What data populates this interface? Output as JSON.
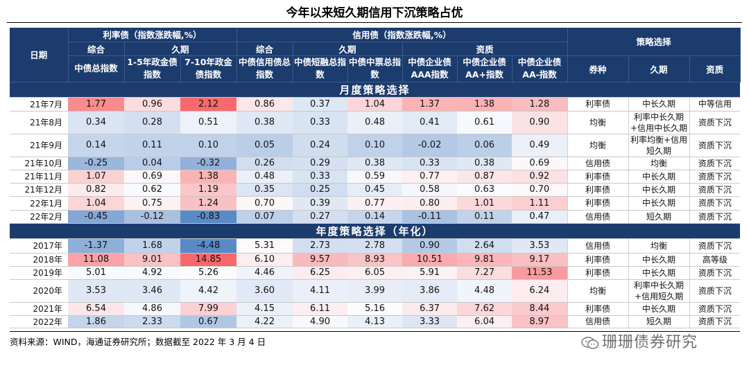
{
  "title": "今年以来短久期信用下沉策略占优",
  "header": {
    "date": "日期",
    "rate_group": "利率债（指数涨跌幅,%）",
    "credit_group": "信用债（指数涨跌幅,%）",
    "strategy_group": "策略选择",
    "rate_composite": "综合",
    "rate_duration": "久期",
    "credit_composite": "综合",
    "credit_duration": "久期",
    "credit_quality": "资质",
    "columns": [
      "中债总指数",
      "1-5年政金债指数",
      "7-10年政金债指数",
      "中债信用债总指数",
      "中债短融总指数",
      "中债中票总指数",
      "中债企业债AAA指数",
      "中债企业债AA+指数",
      "中债企业债AA-指数"
    ],
    "strategy_columns": [
      "券种",
      "久期",
      "资质"
    ]
  },
  "sections": {
    "monthly": "月度策略选择",
    "yearly": "年度策略选择（年化）"
  },
  "monthly_rows": [
    {
      "date": "21年7月",
      "values": [
        "1.77",
        "0.96",
        "2.12",
        "0.86",
        "0.37",
        "1.04",
        "1.37",
        "1.38",
        "1.28"
      ],
      "type": "利率债",
      "duration": "中长久期",
      "quality": "中等信用"
    },
    {
      "date": "21年8月",
      "values": [
        "0.34",
        "0.28",
        "0.51",
        "0.38",
        "0.33",
        "0.48",
        "0.41",
        "0.61",
        "0.90"
      ],
      "type": "均衡",
      "duration": "利率中长久期+信用中长久期",
      "quality": "资质下沉"
    },
    {
      "date": "21年9月",
      "values": [
        "0.14",
        "0.11",
        "0.10",
        "0.05",
        "0.24",
        "0.10",
        "-0.02",
        "0.06",
        "0.49"
      ],
      "type": "均衡",
      "duration": "利率均衡+信用短久期",
      "quality": "资质下沉"
    },
    {
      "date": "21年10月",
      "values": [
        "-0.25",
        "0.04",
        "-0.32",
        "0.26",
        "0.29",
        "0.38",
        "0.33",
        "0.38",
        "0.69"
      ],
      "type": "信用债",
      "duration": "均衡",
      "quality": "资质下沉"
    },
    {
      "date": "21年11月",
      "values": [
        "1.07",
        "0.69",
        "1.38",
        "0.48",
        "0.33",
        "0.59",
        "0.77",
        "0.87",
        "0.92"
      ],
      "type": "利率债",
      "duration": "中长久期",
      "quality": "资质下沉"
    },
    {
      "date": "21年12月",
      "values": [
        "0.82",
        "0.62",
        "1.19",
        "0.35",
        "0.25",
        "0.45",
        "0.58",
        "0.63",
        "0.70"
      ],
      "type": "利率债",
      "duration": "中长久期",
      "quality": "资质下沉"
    },
    {
      "date": "22年1月",
      "values": [
        "1.04",
        "0.75",
        "1.24",
        "0.70",
        "0.39",
        "0.77",
        "0.80",
        "1.01",
        "1.11"
      ],
      "type": "利率债",
      "duration": "中长久期",
      "quality": "资质下沉"
    },
    {
      "date": "22年2月",
      "values": [
        "-0.45",
        "-0.12",
        "-0.83",
        "0.07",
        "0.27",
        "0.14",
        "-0.11",
        "0.11",
        "0.47"
      ],
      "type": "信用债",
      "duration": "短久期",
      "quality": "资质下沉"
    }
  ],
  "yearly_rows": [
    {
      "date": "2017年",
      "values": [
        "-1.37",
        "1.68",
        "-4.48",
        "5.31",
        "2.73",
        "2.78",
        "0.90",
        "2.64",
        "3.53"
      ],
      "type": "信用债",
      "duration": "均衡",
      "quality": "资质下沉"
    },
    {
      "date": "2018年",
      "values": [
        "11.08",
        "9.01",
        "14.85",
        "6.10",
        "9.57",
        "8.93",
        "10.51",
        "9.81",
        "9.17"
      ],
      "type": "利率债",
      "duration": "中长久期",
      "quality": "高等级"
    },
    {
      "date": "2019年",
      "values": [
        "5.01",
        "4.92",
        "5.26",
        "4.46",
        "6.25",
        "6.05",
        "5.91",
        "7.27",
        "11.53"
      ],
      "type": "利率债",
      "duration": "中长久期",
      "quality": "资质下沉"
    },
    {
      "date": "2020年",
      "values": [
        "3.53",
        "3.46",
        "4.42",
        "3.60",
        "4.11",
        "3.99",
        "3.86",
        "4.48",
        "6.24"
      ],
      "type": "均衡",
      "duration": "利率中长久期+信用短久期",
      "quality": "资质下沉"
    },
    {
      "date": "2021年",
      "values": [
        "6.54",
        "4.86",
        "7.99",
        "4.15",
        "6.11",
        "5.16",
        "6.37",
        "7.62",
        "8.44"
      ],
      "type": "利率债",
      "duration": "中长久期",
      "quality": "资质下沉"
    },
    {
      "date": "2022年",
      "values": [
        "1.86",
        "2.33",
        "0.67",
        "4.22",
        "4.90",
        "4.13",
        "3.33",
        "6.04",
        "8.97"
      ],
      "type": "信用债",
      "duration": "短久期",
      "quality": "资质下沉"
    }
  ],
  "footer": {
    "source": "资料来源：WIND，海通证券研究所；数据截至 2022 年 3 月 4 日",
    "watermark": "珊珊债券研究"
  },
  "colors": {
    "header_bg": "#1c3c6e",
    "heat_high": "#f8696b",
    "heat_mid": "#fcfcff",
    "heat_low": "#5a8ac6"
  }
}
